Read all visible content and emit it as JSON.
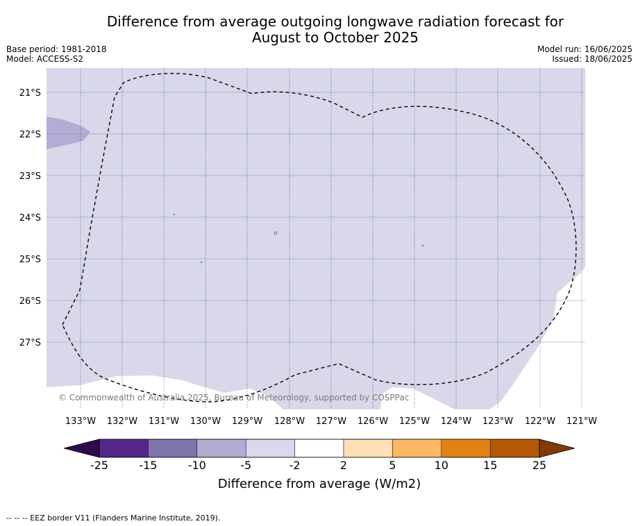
{
  "title_line1": "Difference from average outgoing longwave radiation forecast for",
  "title_line2": "August to October 2025",
  "base_period": "Base period: 1981-2018",
  "model": "Model: ACCESS-S2",
  "model_run": "Model run: 16/06/2025",
  "issued": "Issued: 18/06/2025",
  "copyright": "© Commonwealth of Australia 2025, Bureau of Meteorology, supported by COSPPac",
  "footnote": "-- -- -- EEZ border V11 (Flanders Marine Institute, 2019).",
  "map": {
    "lat_labels": [
      "21°S",
      "22°S",
      "23°S",
      "24°S",
      "25°S",
      "26°S",
      "27°S"
    ],
    "lon_labels": [
      "133°W",
      "132°W",
      "131°W",
      "130°W",
      "129°W",
      "128°W",
      "127°W",
      "126°W",
      "125°W",
      "124°W",
      "123°W",
      "122°W",
      "121°W"
    ]
  },
  "colorbar": {
    "label": "Difference from average (W/m2)",
    "ticks": [
      "-25",
      "-15",
      "-10",
      "-5",
      "-2",
      "2",
      "5",
      "10",
      "15",
      "25"
    ],
    "colors": [
      "#2d0a4e",
      "#542788",
      "#8073ac",
      "#b2abd2",
      "#d8daeb",
      "#ffffff",
      "#fee0b6",
      "#fdb863",
      "#e08214",
      "#b35806",
      "#7f3b08"
    ]
  }
}
